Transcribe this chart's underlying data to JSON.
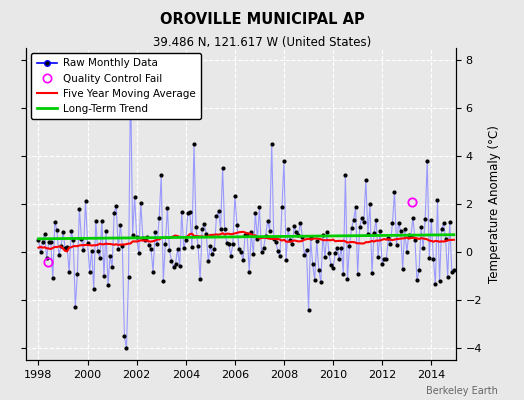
{
  "title": "OROVILLE MUNICIPAL AP",
  "subtitle": "39.486 N, 121.617 W (United States)",
  "ylabel": "Temperature Anomaly (°C)",
  "xlim": [
    1997.5,
    2015.0
  ],
  "ylim": [
    -4.5,
    8.5
  ],
  "yticks": [
    -4,
    -2,
    0,
    2,
    4,
    6,
    8
  ],
  "xticks": [
    1998,
    2000,
    2002,
    2004,
    2006,
    2008,
    2010,
    2012,
    2014
  ],
  "bg_color": "#e8e8e8",
  "raw_line_color": "#9999ff",
  "raw_marker_color": "black",
  "moving_avg_color": "red",
  "trend_color": "#00cc00",
  "qc_fail_color": "magenta",
  "watermark": "Berkeley Earth",
  "legend_labels": [
    "Raw Monthly Data",
    "Quality Control Fail",
    "Five Year Moving Average",
    "Long-Term Trend"
  ],
  "start_year": 1998,
  "end_year": 2014,
  "qc_points": [
    [
      1998.4,
      -0.4
    ],
    [
      2013.2,
      2.1
    ]
  ],
  "figsize": [
    5.24,
    4.0
  ],
  "dpi": 100
}
